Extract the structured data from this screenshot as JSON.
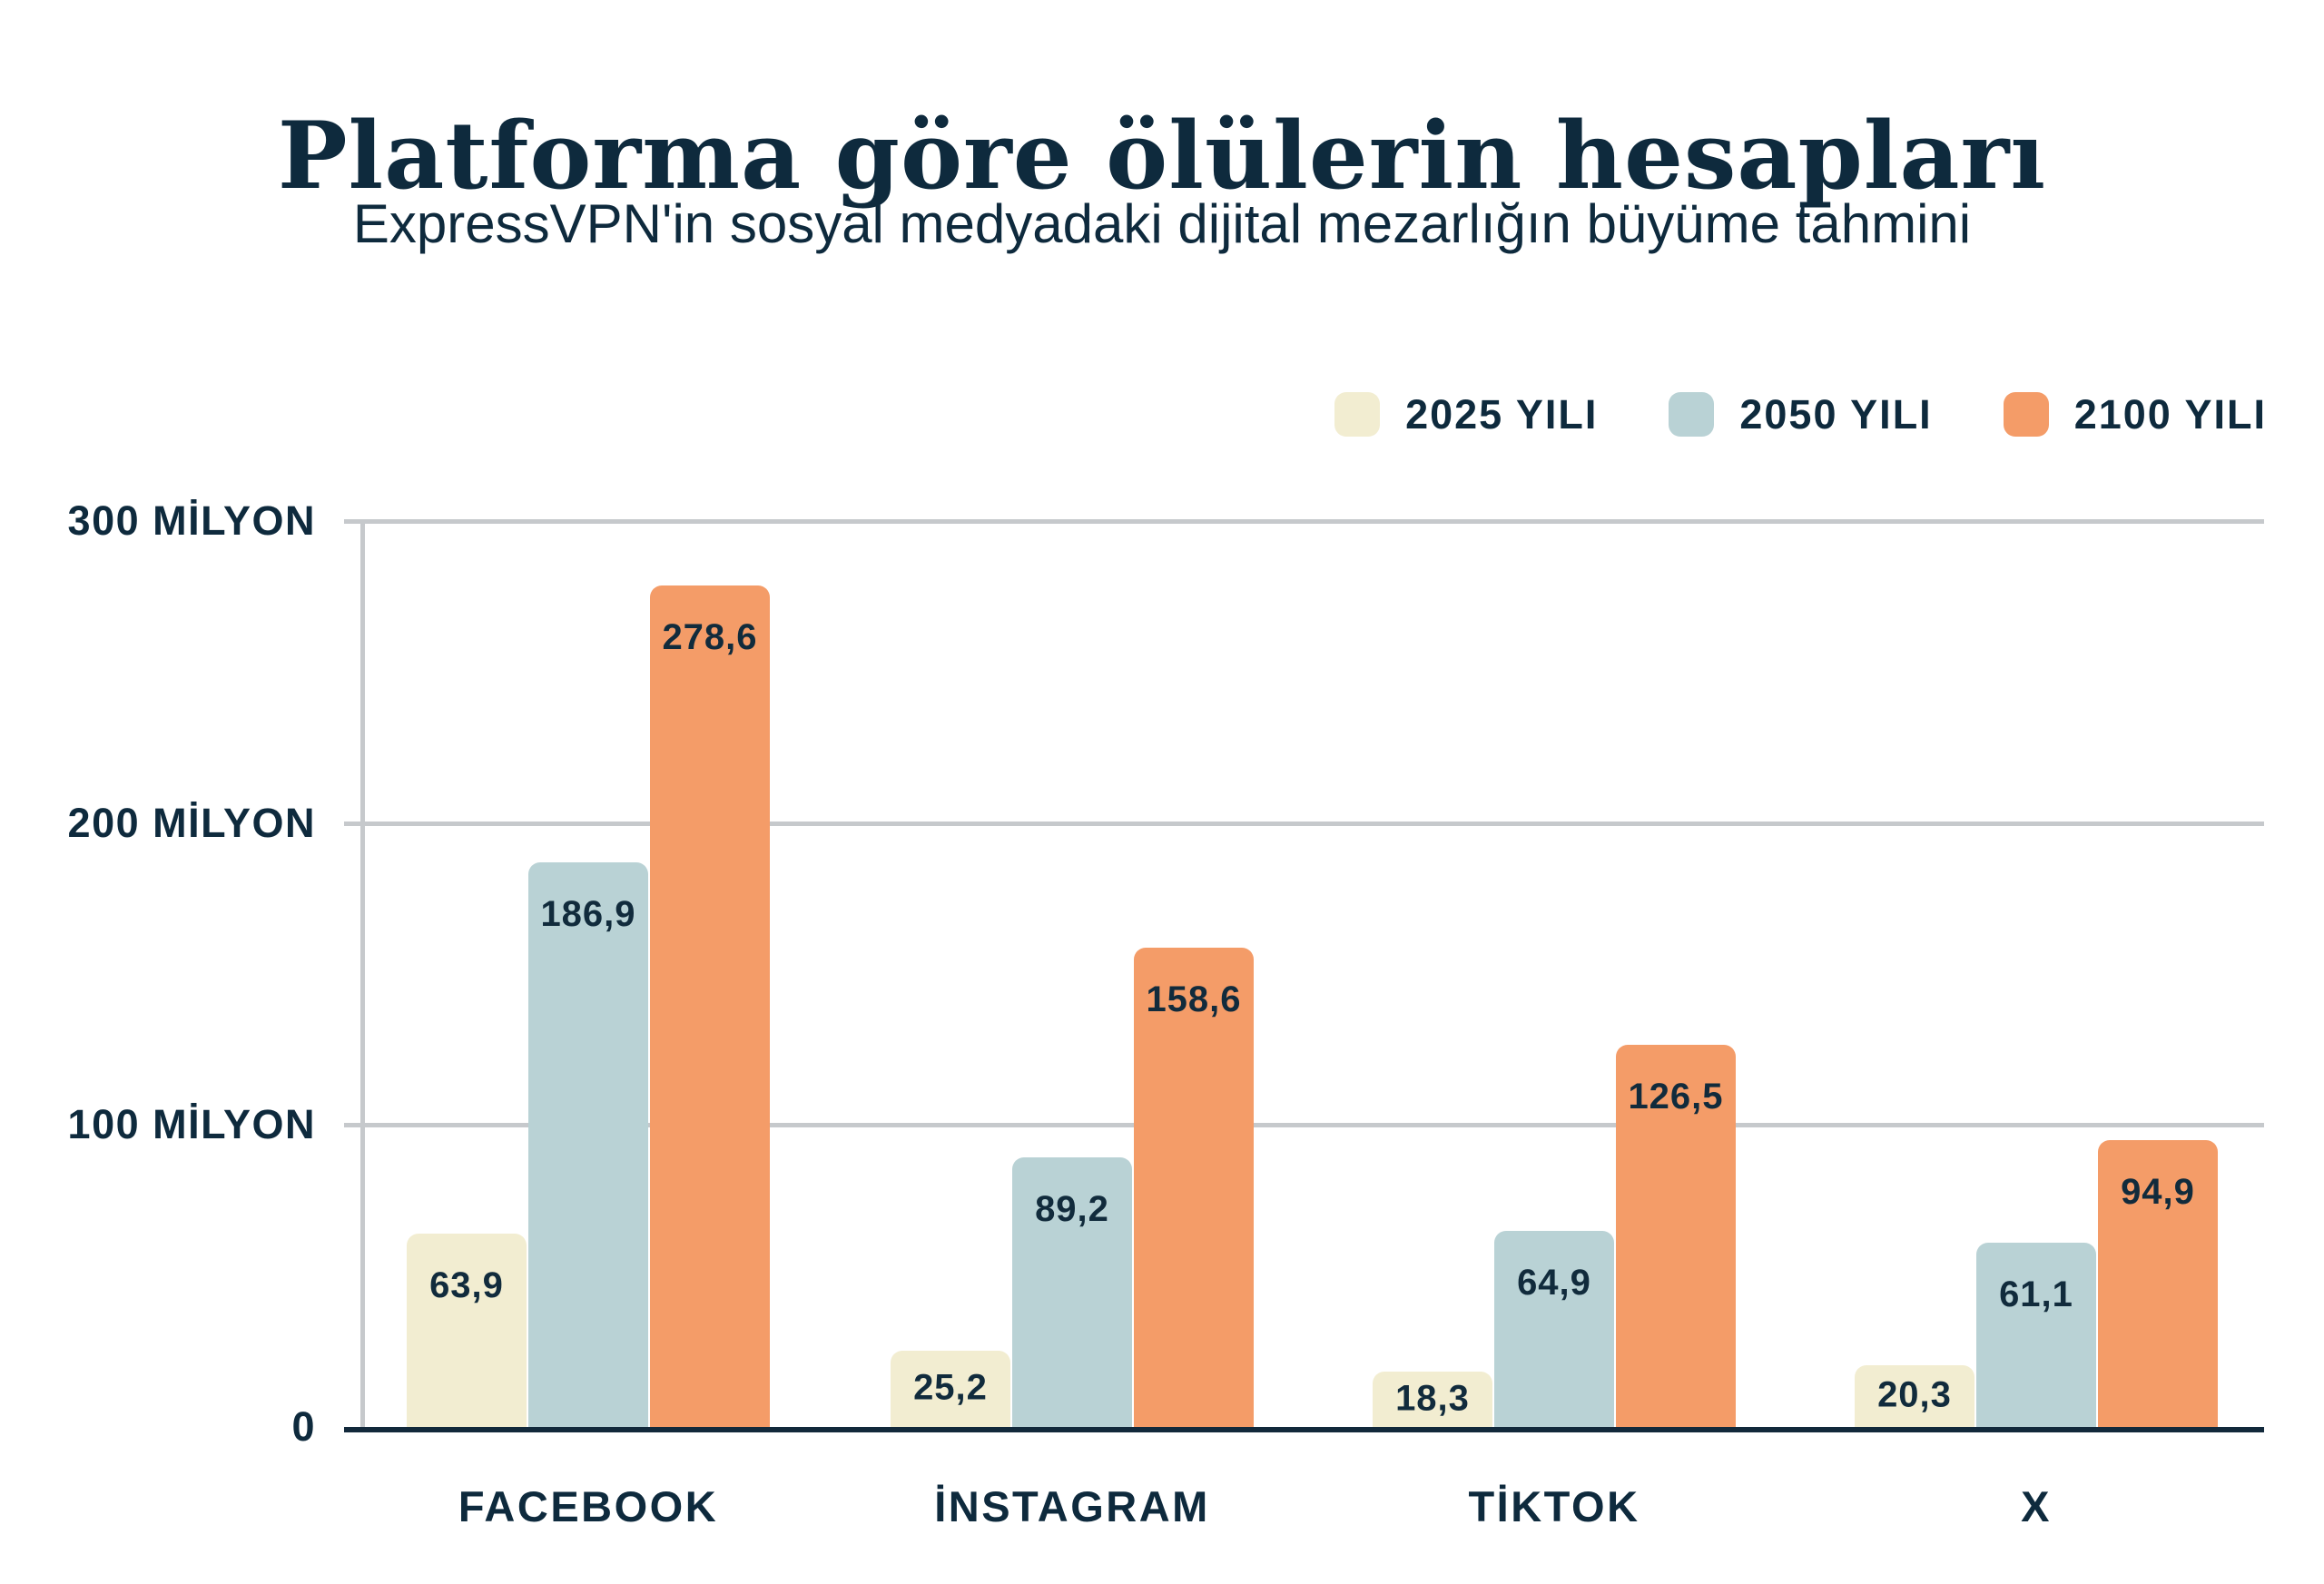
{
  "header": {
    "title": "Platforma göre ölülerin hesapları",
    "subtitle": "ExpressVPN'in sosyal medyadaki dijital mezarlığın büyüme tahmini"
  },
  "legend": {
    "items": [
      {
        "label": "2025 YILI",
        "color": "#f2edd1"
      },
      {
        "label": "2050 YILI",
        "color": "#b9d2d5"
      },
      {
        "label": "2100 YILI",
        "color": "#f49c68"
      }
    ]
  },
  "y_axis": {
    "ticks": [
      {
        "label": "300 MİLYON",
        "value": 300
      },
      {
        "label": "200 MİLYON",
        "value": 200
      },
      {
        "label": "100 MİLYON",
        "value": 100
      },
      {
        "label": "0",
        "value": 0
      }
    ]
  },
  "chart_data": {
    "type": "bar",
    "title": "Platforma göre ölülerin hesapları",
    "subtitle": "ExpressVPN'in sosyal medyadaki dijital mezarlığın büyüme tahmini",
    "categories": [
      "FACEBOOK",
      "İNSTAGRAM",
      "TİKTOK",
      "X"
    ],
    "series": [
      {
        "name": "2025 YILI",
        "color": "#f2edd1",
        "values": [
          63.9,
          25.2,
          18.3,
          20.3
        ],
        "value_labels": [
          "63,9",
          "25,2",
          "18,3",
          "20,3"
        ]
      },
      {
        "name": "2050 YILI",
        "color": "#b9d2d5",
        "values": [
          186.9,
          89.2,
          64.9,
          61.1
        ],
        "value_labels": [
          "186,9",
          "89,2",
          "64,9",
          "61,1"
        ]
      },
      {
        "name": "2100 YILI",
        "color": "#f49c68",
        "values": [
          278.6,
          158.6,
          126.5,
          94.9
        ],
        "value_labels": [
          "278,6",
          "158,6",
          "126,5",
          "94,9"
        ]
      }
    ],
    "xlabel": "",
    "ylabel": "",
    "ylim": [
      0,
      300
    ],
    "grid": "horizontal",
    "legend_position": "top-right"
  },
  "colors": {
    "background": "#ffffff",
    "text_navy": "#0e2a3d",
    "gridline_gray": "#c6c9cc",
    "baseline_navy": "#12293b",
    "series_2025": "#f2edd1",
    "series_2050": "#b9d2d5",
    "series_2100": "#f49c68"
  }
}
